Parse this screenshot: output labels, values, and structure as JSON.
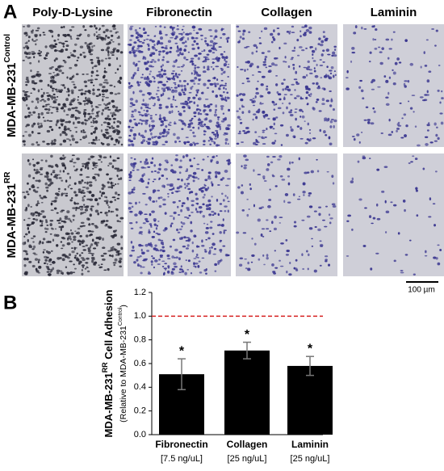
{
  "panel_a": {
    "label": "A",
    "columns": [
      "Poly-D-Lysine",
      "Fibronectin",
      "Collagen",
      "Laminin"
    ],
    "rows": [
      {
        "name": "MDA-MB-231",
        "sup": "Control"
      },
      {
        "name": "MDA-MB-231",
        "sup": "RR"
      }
    ],
    "scale_bar": "100 µm"
  },
  "chart_data": {
    "type": "bar",
    "label": "B",
    "ylabel": {
      "line1": "MDA-MB-231",
      "line1_sup": "RR",
      "line1_end": " Cell Adhesion",
      "line2": "(Relative to MDA-MB-231",
      "line2_sup": "Control",
      "line2_end": ")"
    },
    "categories": [
      "Fibronectin",
      "Collagen",
      "Laminin"
    ],
    "sublabels": [
      "[7.5 ng/uL]",
      "[25 ng/uL]",
      "[25 ng/uL]"
    ],
    "values": [
      0.51,
      0.71,
      0.58
    ],
    "errors": [
      0.13,
      0.07,
      0.08
    ],
    "annotations": [
      "*",
      "*",
      "*"
    ],
    "color": "#000000",
    "reference_line": 1,
    "reference_color": "#d62020",
    "ylim": [
      0,
      1.2
    ],
    "yticks": [
      {
        "value": 0,
        "label": "0.0"
      },
      0.2,
      0.4,
      0.6,
      0.8,
      {
        "value": 1,
        "label": "1.0"
      },
      1.2
    ]
  }
}
